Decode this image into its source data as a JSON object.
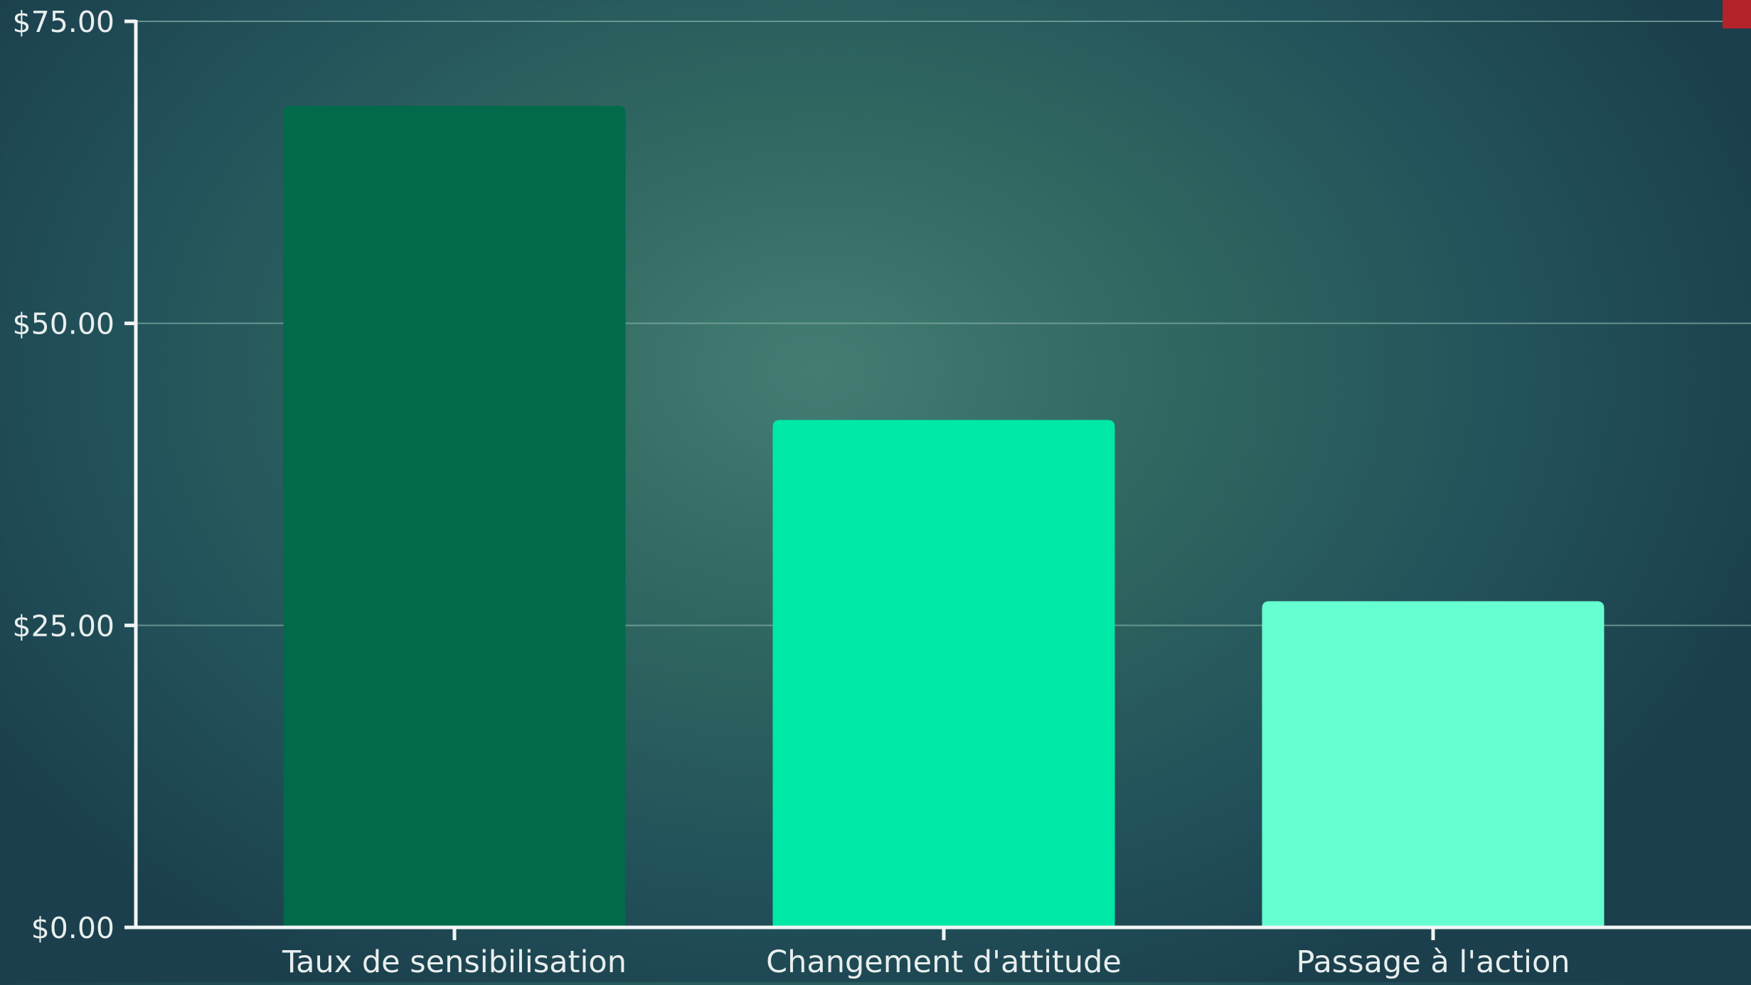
{
  "colors": {
    "background": "#2f6660",
    "axis": "#f1f5f5",
    "grid": "#7ea9a3",
    "tick_text": "#e8eeee",
    "corner_tab": "#b3232a"
  },
  "chart_data": {
    "type": "bar",
    "categories": [
      "Taux de sensibilisation",
      "Changement d'attitude",
      "Passage à l'action"
    ],
    "values": [
      68,
      42,
      27
    ],
    "bar_colors": [
      "#006a4a",
      "#00e8a6",
      "#66ffd1"
    ],
    "title": "",
    "xlabel": "",
    "ylabel": "",
    "ylim": [
      0,
      75
    ],
    "yticks": [
      0,
      25,
      50,
      75
    ],
    "ytick_labels": [
      "$0.00",
      "$25.00",
      "$50.00",
      "$75.00"
    ],
    "grid": true
  }
}
